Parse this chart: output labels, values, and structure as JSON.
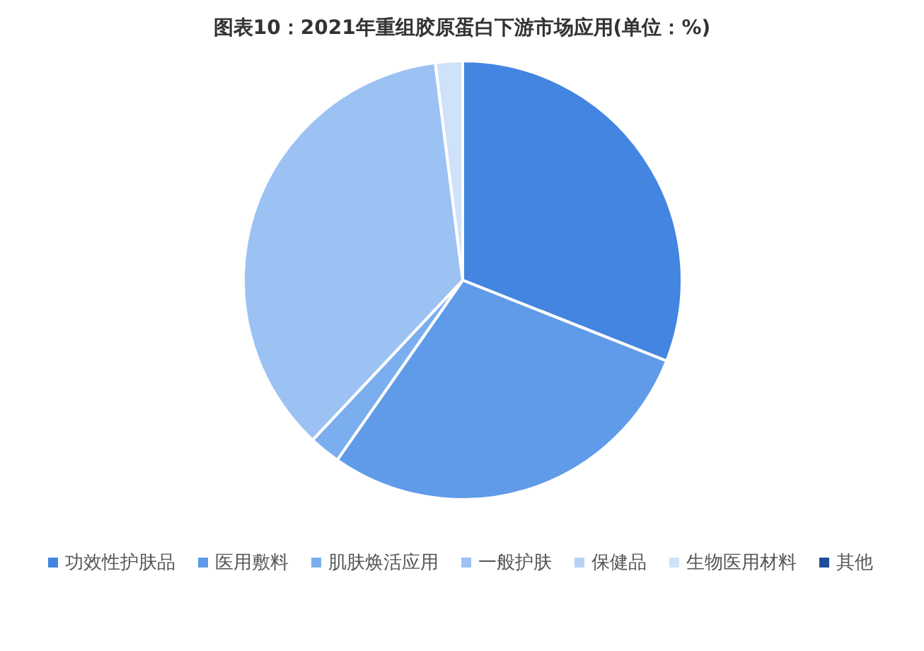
{
  "chart_data": {
    "type": "pie",
    "title": "图表10：2021年重组胶原蛋白下游市场应用(单位：%)",
    "categories": [
      "功效性护肤品",
      "医用敷料",
      "肌肤焕活应用",
      "一般护肤",
      "保健品",
      "生物医用材料",
      "其他"
    ],
    "values": [
      31.0,
      28.7,
      2.3,
      36.0,
      null,
      2.0,
      null
    ],
    "colors": [
      "#4385e0",
      "#5f9be8",
      "#7aaeee",
      "#9bc2f2",
      "#b5d3f6",
      "#cfe2fa",
      "#1f4e9a"
    ],
    "legend": "bottom"
  }
}
